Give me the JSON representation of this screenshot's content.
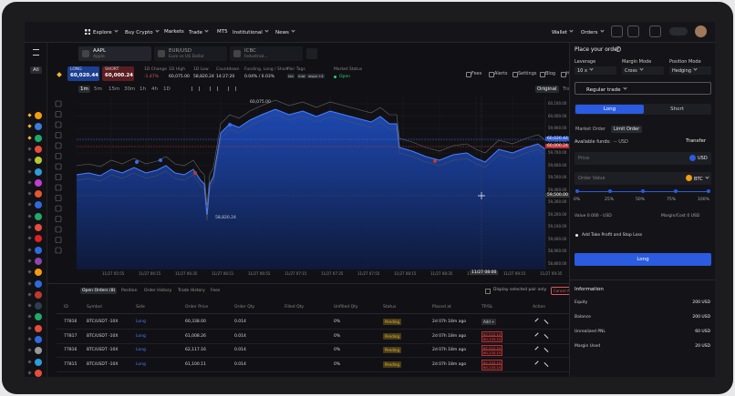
{
  "nav": {
    "items": [
      "Explore",
      "Buy Crypto",
      "Markets",
      "Trade",
      "MT5",
      "Institutional",
      "News"
    ],
    "wallet": "Wallet",
    "orders": "Orders"
  },
  "sidebar": {
    "filter": "All"
  },
  "tabs": [
    {
      "symbol": "AAPL",
      "name": "Apple"
    },
    {
      "symbol": "EUR/USD",
      "name": "Euro vs US Dollar"
    },
    {
      "symbol": "ICBC",
      "name": "Industrial..."
    }
  ],
  "ticker": {
    "long_label": "LONG",
    "long_price": "60,020.44",
    "short_label": "SHORT",
    "short_price": "60,000.24",
    "stats": [
      {
        "label": "1D Change",
        "value": "-1.47%"
      },
      {
        "label": "1D High",
        "value": "60,075.00"
      },
      {
        "label": "1D Low",
        "value": "58,820.24"
      },
      {
        "label": "Countdown",
        "value": "14:27:20"
      },
      {
        "label": "Funding, Long / Short",
        "value": "0.04% / 0.03%"
      }
    ],
    "pair_tags_label": "Pair Tags",
    "pair_tags": [
      "tec",
      "mat",
      "wspa",
      "+4"
    ],
    "market_status_label": "Market Status",
    "market_status": "Open"
  },
  "toolbar": {
    "tools": [
      "Fees",
      "Alerts",
      "Settings",
      "Blog",
      "Help"
    ],
    "timeframes": [
      "1m",
      "5m",
      "15m",
      "30m",
      "1h",
      "4h",
      "1D"
    ],
    "views": [
      "Original",
      "Trading View"
    ]
  },
  "chart": {
    "price_axis": [
      "60,100.00",
      "60,000.00",
      "59,900.00",
      "59,800.00",
      "59,700.00",
      "59,600.00",
      "59,500.00",
      "59,400.00",
      "59,300.00",
      "59,200.00",
      "59,100.00",
      "59,000.00",
      "58,900.00",
      "58,800.00"
    ],
    "time_axis": [
      "11/27 05:55",
      "11/27 06:15",
      "11/27 06:35",
      "11/27 06:51",
      "11/27 06:55",
      "11/27 07:15",
      "11/27 07:35",
      "11/27 07:55",
      "11/27 08:15",
      "11/27 08:35",
      "11/27 08:55",
      "11/27 09:15",
      "11/27 09:35"
    ],
    "high": "60,075.00",
    "low": "58,820.24",
    "long_tag": "60,020.44",
    "short_tag": "60,000.24",
    "cursor_price": "59,500.00",
    "cursor_time": "11/27 08:00"
  },
  "orders": {
    "tabs": [
      "Open Orders (8)",
      "Position",
      "Order History",
      "Trade History",
      "Fees"
    ],
    "filter": "Display selected pair only",
    "cancel": "Cancel All Orders",
    "columns": [
      "ID",
      "Symbol",
      "Side",
      "Order Price",
      "Order Qty",
      "Filled Qty",
      "Unfilled Qty",
      "Status",
      "Placed at",
      "TP/SL",
      "Action"
    ],
    "rows": [
      {
        "id": "77816",
        "symbol": "BTC/USDT -10X",
        "side": "Long",
        "price": "60,338.00",
        "qty": "0.014",
        "unfilled": "0%",
        "status": "Pending",
        "placed": "2d 07h 18m ago",
        "tpsl": [
          "Add +"
        ]
      },
      {
        "id": "77817",
        "symbol": "BTC/USDT -10X",
        "side": "Long",
        "price": "61,008.26",
        "qty": "0.014",
        "unfilled": "0%",
        "status": "Pending",
        "placed": "2d 07h 18m ago",
        "tpsl": [
          "62,222.15",
          "60,133.15"
        ]
      },
      {
        "id": "77816",
        "symbol": "BTC/USDT -10X",
        "side": "Long",
        "price": "62,117.16",
        "qty": "0.014",
        "unfilled": "0%",
        "status": "Pending",
        "placed": "2d 07h 18m ago",
        "tpsl": [
          "62,222.15",
          "60,133.15"
        ]
      },
      {
        "id": "77815",
        "symbol": "BTC/USDT -10X",
        "side": "Long",
        "price": "61,100.11",
        "qty": "0.014",
        "unfilled": "0%",
        "status": "Pending",
        "placed": "2d 07h 18m ago",
        "tpsl": [
          "62,222.15",
          "60,133.15"
        ]
      }
    ]
  },
  "order_form": {
    "title": "Place your order",
    "settings": [
      {
        "label": "Leverage",
        "value": "10 x"
      },
      {
        "label": "Margin Mode",
        "value": "Cross"
      },
      {
        "label": "Position Mode",
        "value": "Hedging"
      }
    ],
    "trade_type": "Regular trade",
    "sides": [
      "Long",
      "Short"
    ],
    "order_types": [
      "Market Order",
      "Limit Order"
    ],
    "funds_label": "Available funds:",
    "funds_value": "-- USD",
    "transfer": "Transfer",
    "price_placeholder": "Price",
    "price_unit": "USD",
    "value_placeholder": "Order Value",
    "value_unit": "BTC",
    "steps": [
      "0%",
      "25%",
      "50%",
      "75%",
      "100%"
    ],
    "value_text": "Value 0.000 - USD",
    "margin_text": "Margin/Cost 0 USD",
    "tp_sl": "Add Take Profit and Stop Loss",
    "submit": "Long"
  },
  "information": {
    "title": "Information",
    "items": [
      {
        "label": "Equity",
        "value": "200 USD"
      },
      {
        "label": "Balance",
        "value": "200 USD"
      },
      {
        "label": "Unrealized PNL",
        "value": "60 USD"
      },
      {
        "label": "Margin Used",
        "value": "20 USD"
      }
    ]
  }
}
